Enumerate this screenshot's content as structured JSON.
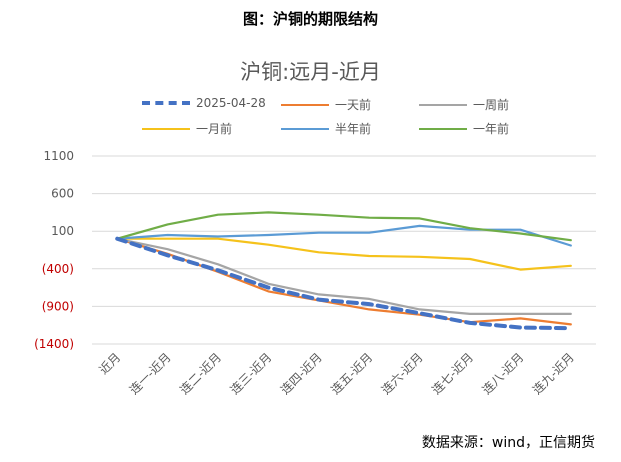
{
  "figure_title": "图：沪铜的期限结构",
  "source_note": "数据来源：wind，正信期货",
  "chart_data": {
    "type": "line",
    "title": "沪铜:远月-近月",
    "categories": [
      "近月",
      "连一-近月",
      "连二-近月",
      "连三-近月",
      "连四-近月",
      "连五-近月",
      "连六-近月",
      "连七-近月",
      "连八-近月",
      "连九-近月"
    ],
    "y_ticks": [
      "1100",
      "600",
      "100",
      "(400)",
      "(900)",
      "(1400)"
    ],
    "y_tick_values": [
      1100,
      600,
      100,
      -400,
      -900,
      -1400
    ],
    "negative_tick_color": "#c00000",
    "ylim": [
      -1400,
      1100
    ],
    "grid": true,
    "legend_position": "top",
    "series": [
      {
        "name": "2025-04-28",
        "color": "#4472c4",
        "dashed": true,
        "values": [
          0,
          -220,
          -420,
          -650,
          -810,
          -870,
          -990,
          -1120,
          -1180,
          -1190
        ]
      },
      {
        "name": "一天前",
        "color": "#ed7d31",
        "dashed": false,
        "values": [
          0,
          -200,
          -440,
          -700,
          -820,
          -940,
          -1010,
          -1110,
          -1060,
          -1140
        ]
      },
      {
        "name": "一周前",
        "color": "#a5a5a5",
        "dashed": false,
        "values": [
          0,
          -140,
          -340,
          -600,
          -740,
          -800,
          -940,
          -1000,
          -1000,
          -1000
        ]
      },
      {
        "name": "一月前",
        "color": "#f5c21b",
        "dashed": false,
        "values": [
          0,
          0,
          0,
          -80,
          -180,
          -230,
          -240,
          -270,
          -410,
          -360
        ]
      },
      {
        "name": "半年前",
        "color": "#5b9bd5",
        "dashed": false,
        "values": [
          0,
          50,
          30,
          50,
          80,
          80,
          170,
          120,
          120,
          -90
        ]
      },
      {
        "name": "一年前",
        "color": "#70ad47",
        "dashed": false,
        "values": [
          0,
          190,
          320,
          350,
          320,
          280,
          270,
          140,
          70,
          -20
        ]
      }
    ]
  }
}
